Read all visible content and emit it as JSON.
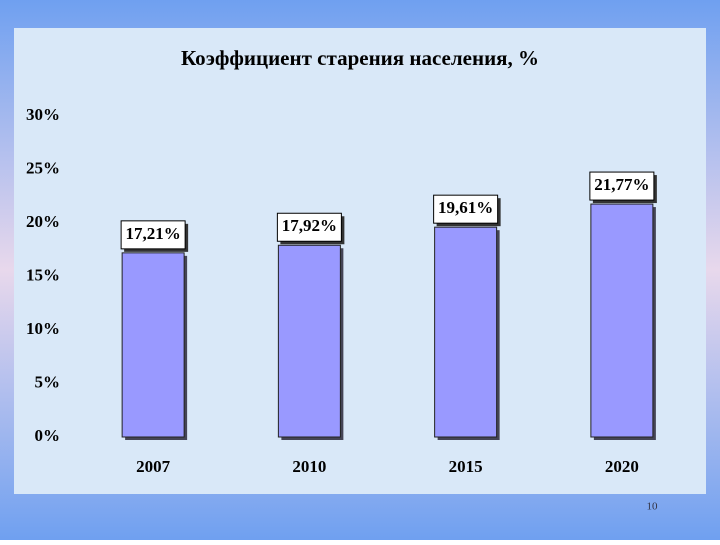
{
  "chart_data": {
    "type": "bar",
    "title": "Коэффициент старения населения, %",
    "categories": [
      "2007",
      "2010",
      "2015",
      "2020"
    ],
    "values": [
      17.21,
      17.92,
      19.61,
      21.77
    ],
    "value_labels": [
      "17,21%",
      "17,92%",
      "19,61%",
      "21,77%"
    ],
    "color": "#9999ff",
    "ylim": [
      0,
      30
    ],
    "yticks": [
      {
        "value": 0,
        "label": "0%"
      },
      {
        "value": 5,
        "label": "5%"
      },
      {
        "value": 10,
        "label": "10%"
      },
      {
        "value": 15,
        "label": "15%"
      },
      {
        "value": 20,
        "label": "20%"
      },
      {
        "value": 25,
        "label": "25%"
      },
      {
        "value": 30,
        "label": "30%"
      }
    ],
    "grid": false
  },
  "slide_number": "10"
}
